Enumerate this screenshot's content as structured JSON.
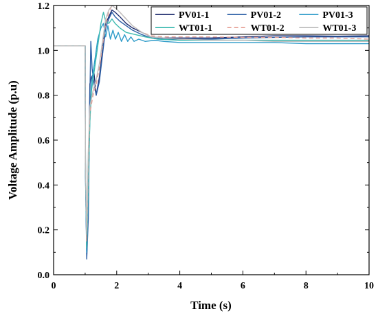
{
  "chart_data": {
    "type": "line",
    "title": "",
    "xlabel": "Time (s)",
    "ylabel": "Voltage Amplitude (p.u)",
    "xlim": [
      0,
      10
    ],
    "ylim": [
      0,
      1.2
    ],
    "xticks": [
      "0",
      "2",
      "4",
      "6",
      "8",
      "10"
    ],
    "yticks": [
      "0.0",
      "0.2",
      "0.4",
      "0.6",
      "0.8",
      "1.0",
      "1.2"
    ],
    "grid": false,
    "legend_position": "top-right",
    "series": [
      {
        "name": "PV01-1",
        "color": "#1f2d6e",
        "dash": "",
        "points": [
          [
            0,
            1.02
          ],
          [
            1.0,
            1.02
          ],
          [
            1.01,
            0.5
          ],
          [
            1.05,
            0.08
          ],
          [
            1.1,
            0.33
          ],
          [
            1.15,
            0.85
          ],
          [
            1.2,
            0.88
          ],
          [
            1.28,
            0.9
          ],
          [
            1.35,
            0.8
          ],
          [
            1.45,
            0.88
          ],
          [
            1.55,
            1.0
          ],
          [
            1.65,
            1.12
          ],
          [
            1.75,
            1.15
          ],
          [
            1.85,
            1.18
          ],
          [
            1.95,
            1.17
          ],
          [
            2.1,
            1.15
          ],
          [
            2.3,
            1.12
          ],
          [
            2.5,
            1.1
          ],
          [
            2.8,
            1.08
          ],
          [
            3.1,
            1.06
          ],
          [
            3.5,
            1.055
          ],
          [
            4,
            1.055
          ],
          [
            5,
            1.055
          ],
          [
            6,
            1.06
          ],
          [
            7,
            1.065
          ],
          [
            8,
            1.065
          ],
          [
            9,
            1.063
          ],
          [
            10,
            1.065
          ]
        ]
      },
      {
        "name": "PV01-2",
        "color": "#2b5fa6",
        "dash": "",
        "points": [
          [
            0,
            1.02
          ],
          [
            1.0,
            1.02
          ],
          [
            1.01,
            0.45
          ],
          [
            1.05,
            0.07
          ],
          [
            1.1,
            0.25
          ],
          [
            1.15,
            0.8
          ],
          [
            1.18,
            1.04
          ],
          [
            1.22,
            0.92
          ],
          [
            1.28,
            0.85
          ],
          [
            1.35,
            0.8
          ],
          [
            1.45,
            0.86
          ],
          [
            1.55,
            0.98
          ],
          [
            1.65,
            1.1
          ],
          [
            1.75,
            1.14
          ],
          [
            1.85,
            1.17
          ],
          [
            1.95,
            1.15
          ],
          [
            2.1,
            1.13
          ],
          [
            2.3,
            1.11
          ],
          [
            2.5,
            1.09
          ],
          [
            2.8,
            1.07
          ],
          [
            3.1,
            1.055
          ],
          [
            3.5,
            1.05
          ],
          [
            4,
            1.05
          ],
          [
            5,
            1.05
          ],
          [
            6,
            1.055
          ],
          [
            7,
            1.058
          ],
          [
            8,
            1.06
          ],
          [
            9,
            1.06
          ],
          [
            10,
            1.06
          ]
        ]
      },
      {
        "name": "PV01-3",
        "color": "#2e9bc9",
        "dash": "",
        "points": [
          [
            0,
            1.02
          ],
          [
            1.0,
            1.02
          ],
          [
            1.01,
            0.45
          ],
          [
            1.05,
            0.1
          ],
          [
            1.1,
            0.4
          ],
          [
            1.15,
            0.7
          ],
          [
            1.2,
            0.85
          ],
          [
            1.3,
            0.95
          ],
          [
            1.4,
            1.05
          ],
          [
            1.5,
            1.1
          ],
          [
            1.58,
            1.12
          ],
          [
            1.65,
            1.06
          ],
          [
            1.72,
            1.11
          ],
          [
            1.8,
            1.05
          ],
          [
            1.88,
            1.09
          ],
          [
            1.96,
            1.05
          ],
          [
            2.05,
            1.08
          ],
          [
            2.15,
            1.04
          ],
          [
            2.25,
            1.07
          ],
          [
            2.35,
            1.04
          ],
          [
            2.45,
            1.06
          ],
          [
            2.55,
            1.04
          ],
          [
            2.7,
            1.05
          ],
          [
            2.9,
            1.04
          ],
          [
            3.2,
            1.045
          ],
          [
            3.5,
            1.04
          ],
          [
            4,
            1.035
          ],
          [
            5,
            1.035
          ],
          [
            6,
            1.035
          ],
          [
            7,
            1.035
          ],
          [
            8,
            1.03
          ],
          [
            9,
            1.03
          ],
          [
            10,
            1.03
          ]
        ]
      },
      {
        "name": "WT01-1",
        "color": "#3cbab0",
        "dash": "",
        "points": [
          [
            0,
            1.02
          ],
          [
            1.0,
            1.02
          ],
          [
            1.01,
            0.5
          ],
          [
            1.05,
            0.12
          ],
          [
            1.1,
            0.4
          ],
          [
            1.15,
            0.68
          ],
          [
            1.2,
            0.82
          ],
          [
            1.3,
            0.92
          ],
          [
            1.4,
            1.02
          ],
          [
            1.5,
            1.12
          ],
          [
            1.58,
            1.17
          ],
          [
            1.65,
            1.13
          ],
          [
            1.75,
            1.12
          ],
          [
            1.85,
            1.14
          ],
          [
            1.95,
            1.12
          ],
          [
            2.1,
            1.1
          ],
          [
            2.3,
            1.08
          ],
          [
            2.6,
            1.07
          ],
          [
            2.9,
            1.06
          ],
          [
            3.3,
            1.05
          ],
          [
            4,
            1.045
          ],
          [
            5,
            1.045
          ],
          [
            6,
            1.045
          ],
          [
            7,
            1.045
          ],
          [
            8,
            1.045
          ],
          [
            9,
            1.045
          ],
          [
            10,
            1.045
          ]
        ]
      },
      {
        "name": "WT01-2",
        "color": "#e6a096",
        "dash": "6 4",
        "points": [
          [
            0,
            1.02
          ],
          [
            1.0,
            1.02
          ],
          [
            1.01,
            0.5
          ],
          [
            1.05,
            0.15
          ],
          [
            1.1,
            0.5
          ],
          [
            1.15,
            0.72
          ],
          [
            1.25,
            0.8
          ],
          [
            1.35,
            0.85
          ],
          [
            1.45,
            0.92
          ],
          [
            1.55,
            1.02
          ],
          [
            1.65,
            1.12
          ],
          [
            1.75,
            1.17
          ],
          [
            1.85,
            1.2
          ],
          [
            1.95,
            1.19
          ],
          [
            2.1,
            1.17
          ],
          [
            2.3,
            1.14
          ],
          [
            2.5,
            1.11
          ],
          [
            2.8,
            1.08
          ],
          [
            3.1,
            1.065
          ],
          [
            3.5,
            1.06
          ],
          [
            4,
            1.06
          ],
          [
            5,
            1.06
          ],
          [
            6,
            1.058
          ],
          [
            7,
            1.058
          ],
          [
            8,
            1.055
          ],
          [
            9,
            1.055
          ],
          [
            10,
            1.05
          ]
        ]
      },
      {
        "name": "WT01-3",
        "color": "#bdbdbd",
        "dash": "",
        "points": [
          [
            0,
            1.02
          ],
          [
            1.0,
            1.02
          ],
          [
            1.01,
            0.5
          ],
          [
            1.05,
            0.18
          ],
          [
            1.1,
            0.55
          ],
          [
            1.15,
            0.75
          ],
          [
            1.25,
            0.82
          ],
          [
            1.35,
            0.87
          ],
          [
            1.45,
            0.94
          ],
          [
            1.55,
            1.04
          ],
          [
            1.65,
            1.14
          ],
          [
            1.75,
            1.18
          ],
          [
            1.85,
            1.2
          ],
          [
            1.95,
            1.19
          ],
          [
            2.1,
            1.17
          ],
          [
            2.3,
            1.14
          ],
          [
            2.5,
            1.11
          ],
          [
            2.8,
            1.08
          ],
          [
            3.1,
            1.06
          ],
          [
            3.5,
            1.055
          ],
          [
            4,
            1.05
          ],
          [
            5,
            1.045
          ],
          [
            6,
            1.045
          ],
          [
            7,
            1.04
          ],
          [
            8,
            1.04
          ],
          [
            9,
            1.04
          ],
          [
            10,
            1.04
          ]
        ]
      }
    ]
  }
}
